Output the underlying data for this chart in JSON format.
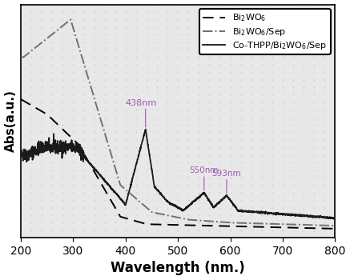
{
  "title": "",
  "xlabel": "Wavelength (nm.)",
  "ylabel": "Abs(a.u.)",
  "xlim": [
    200,
    800
  ],
  "ylim": [
    0,
    1.55
  ],
  "xlabel_fontsize": 12,
  "ylabel_fontsize": 11,
  "tick_fontsize": 10,
  "legend_labels": [
    "Bi$_2$WO$_6$",
    "Bi$_2$WO$_6$/Sep",
    "Co-THPP/Bi$_2$WO$_6$/Sep"
  ],
  "ann_color": "#9b59b6",
  "bg_color": "#e8e8e8",
  "dot_color": "#c0c0c0"
}
